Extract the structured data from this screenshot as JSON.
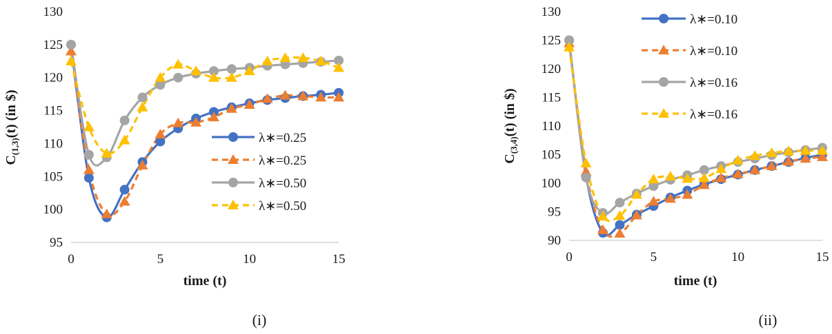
{
  "charts": [
    {
      "type": "line",
      "ylabel_main": "C",
      "ylabel_sub": "(1,3)",
      "ylabel_rest": "(t) (in $)",
      "xlabel": "time (t)",
      "panel_label": "(i)",
      "xlim": [
        0,
        15
      ],
      "ylim": [
        95,
        130
      ],
      "xticks": [
        0,
        5,
        10,
        15
      ],
      "yticks": [
        95,
        100,
        105,
        110,
        115,
        120,
        125,
        130
      ],
      "legend_position": "right-inside",
      "series": [
        {
          "name": "λ∗=0.25",
          "color": "#4472c4",
          "dash": "solid",
          "marker": "circle",
          "x": [
            0,
            1,
            2,
            3,
            4,
            5,
            6,
            7,
            8,
            9,
            10,
            11,
            12,
            13,
            14,
            15
          ],
          "y": [
            125,
            104.8,
            98.8,
            103,
            107.2,
            110.3,
            112.3,
            113.8,
            114.8,
            115.5,
            116.1,
            116.6,
            116.9,
            117.2,
            117.4,
            117.7
          ]
        },
        {
          "name": "λ∗=0.25",
          "color": "#ed7d31",
          "dash": "dashed",
          "marker": "triangle",
          "x": [
            0,
            1,
            2,
            3,
            4,
            5,
            6,
            7,
            8,
            9,
            10,
            11,
            12,
            13,
            14,
            15
          ],
          "y": [
            124,
            106,
            99.3,
            101.2,
            106.7,
            111.4,
            113.1,
            113.2,
            114,
            115.3,
            115.9,
            116.8,
            117.3,
            117.2,
            117,
            117
          ]
        },
        {
          "name": "λ∗=0.50",
          "color": "#a5a5a5",
          "dash": "solid",
          "marker": "circle",
          "x": [
            0,
            1,
            2,
            3,
            4,
            5,
            6,
            7,
            8,
            9,
            10,
            11,
            12,
            13,
            14,
            15
          ],
          "y": [
            125,
            108.3,
            107.9,
            113.5,
            117,
            118.9,
            120,
            120.6,
            121,
            121.3,
            121.5,
            121.8,
            122,
            122.2,
            122.4,
            122.6
          ]
        },
        {
          "name": "λ∗=0.50",
          "color": "#ffc000",
          "dash": "dashed",
          "marker": "triangle",
          "x": [
            0,
            1,
            2,
            3,
            4,
            5,
            6,
            7,
            8,
            9,
            10,
            11,
            12,
            13,
            14,
            15
          ],
          "y": [
            122.5,
            112.5,
            108.5,
            110.5,
            115.5,
            120,
            122,
            121,
            120,
            120,
            121,
            122.5,
            123,
            123,
            122.5,
            121.5
          ]
        }
      ]
    },
    {
      "type": "line",
      "ylabel_main": "C",
      "ylabel_sub": "(3,4)",
      "ylabel_rest": "(t) (in $)",
      "xlabel": "time (t)",
      "panel_label": "(ii)",
      "xlim": [
        0,
        15
      ],
      "ylim": [
        90,
        130
      ],
      "xticks": [
        0,
        5,
        10,
        15
      ],
      "yticks": [
        90,
        95,
        100,
        105,
        110,
        115,
        120,
        125,
        130
      ],
      "legend_position": "top-right-inside",
      "series": [
        {
          "name": "λ∗=0.10",
          "color": "#4472c4",
          "dash": "solid",
          "marker": "circle",
          "x": [
            0,
            1,
            2,
            3,
            4,
            5,
            6,
            7,
            8,
            9,
            10,
            11,
            12,
            13,
            14,
            15
          ],
          "y": [
            125,
            101.2,
            91.3,
            92.7,
            94.5,
            96,
            97.5,
            98.7,
            99.8,
            100.7,
            101.5,
            102.3,
            103,
            103.7,
            104.4,
            105
          ]
        },
        {
          "name": "λ∗=0.10",
          "color": "#ed7d31",
          "dash": "dashed",
          "marker": "triangle",
          "x": [
            0,
            1,
            2,
            3,
            4,
            5,
            6,
            7,
            8,
            9,
            10,
            11,
            12,
            13,
            14,
            15
          ],
          "y": [
            124.5,
            102,
            91.8,
            91.2,
            94.4,
            96.8,
            97.3,
            98,
            99.7,
            100.9,
            101.6,
            102.3,
            103,
            103.8,
            104.3,
            104.6
          ]
        },
        {
          "name": "λ∗=0.16",
          "color": "#a5a5a5",
          "dash": "solid",
          "marker": "circle",
          "x": [
            0,
            1,
            2,
            3,
            4,
            5,
            6,
            7,
            8,
            9,
            10,
            11,
            12,
            13,
            14,
            15
          ],
          "y": [
            125,
            101,
            94.8,
            96.6,
            98.2,
            99.5,
            100.6,
            101.4,
            102.3,
            103,
            103.7,
            104.3,
            104.9,
            105.4,
            105.8,
            106.2
          ]
        },
        {
          "name": "λ∗=0.16",
          "color": "#ffc000",
          "dash": "dashed",
          "marker": "triangle",
          "x": [
            0,
            1,
            2,
            3,
            4,
            5,
            6,
            7,
            8,
            9,
            10,
            11,
            12,
            13,
            14,
            15
          ],
          "y": [
            123.8,
            103.5,
            94.2,
            94.3,
            98,
            100.7,
            101.2,
            100.8,
            100.9,
            102.5,
            104,
            104.8,
            105.3,
            105.6,
            105.7,
            105.7
          ]
        }
      ]
    }
  ]
}
